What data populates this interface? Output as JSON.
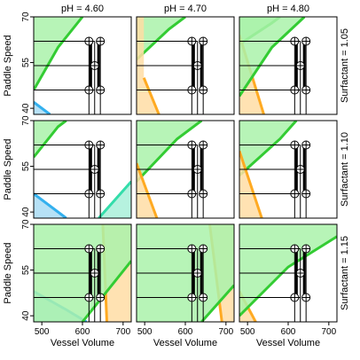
{
  "chart_data": {
    "type": "contour-grid",
    "xlabel": "Vessel Volume",
    "ylabel": "Paddle Speed",
    "xlim": [
      480,
      720
    ],
    "ylim": [
      38,
      70
    ],
    "x_ticks": [
      500,
      600,
      700
    ],
    "y_ticks": [
      40,
      55,
      70
    ],
    "column_labels": [
      "pH = 4.60",
      "pH = 4.70",
      "pH = 4.80"
    ],
    "row_labels": [
      "Surfactant = 1.05",
      "Surfactant = 1.10",
      "Surfactant = 1.15"
    ],
    "colors": {
      "green": "#33cc33",
      "green_fill": "#aaf2aa",
      "orange": "#ffaa22",
      "orange_fill": "#ffdda5",
      "blue": "#33b0ee",
      "blue_fill": "#a9dcf5",
      "teal": "#33ddaa",
      "teal_fill": "#a9f0d9"
    },
    "design_points": {
      "x": [
        616,
        630,
        644
      ],
      "y": [
        46,
        54,
        62
      ],
      "x_center": 630,
      "y_center": 54
    },
    "panels": [
      {
        "row": 0,
        "col": 0,
        "regions": [
          {
            "color": "green",
            "side": "above",
            "line": [
              [
                480,
                46
              ],
              [
                540,
                60
              ],
              [
                600,
                70
              ]
            ]
          },
          {
            "color": "blue",
            "side": "below",
            "line": [
              [
                480,
                42
              ],
              [
                520,
                38
              ]
            ]
          }
        ]
      },
      {
        "row": 0,
        "col": 1,
        "regions": [
          {
            "color": "green",
            "side": "above",
            "line": [
              [
                480,
                56
              ],
              [
                560,
                66
              ],
              [
                600,
                70
              ]
            ]
          },
          {
            "color": "orange",
            "side": "left",
            "line": [
              [
                498,
                50
              ],
              [
                535,
                38
              ]
            ]
          }
        ]
      },
      {
        "row": 0,
        "col": 2,
        "regions": [
          {
            "color": "green",
            "side": "above",
            "line": [
              [
                480,
                61
              ],
              [
                560,
                68
              ],
              [
                580,
                70
              ]
            ]
          },
          {
            "color": "orange",
            "side": "left",
            "line": [
              [
                480,
                64
              ],
              [
                540,
                38
              ]
            ]
          },
          {
            "color": "green",
            "side": "above",
            "line": [
              [
                480,
                44
              ],
              [
                560,
                60
              ],
              [
                640,
                70
              ]
            ]
          }
        ]
      },
      {
        "row": 1,
        "col": 0,
        "regions": [
          {
            "color": "green",
            "side": "above",
            "line": [
              [
                480,
                58
              ],
              [
                540,
                68
              ],
              [
                560,
                70
              ]
            ]
          },
          {
            "color": "blue",
            "side": "below",
            "line": [
              [
                480,
                46
              ],
              [
                560,
                38
              ]
            ]
          },
          {
            "color": "teal",
            "side": "below",
            "line": [
              [
                640,
                38
              ],
              [
                720,
                50
              ]
            ]
          }
        ]
      },
      {
        "row": 1,
        "col": 1,
        "regions": [
          {
            "color": "green",
            "side": "above",
            "line": [
              [
                480,
                50
              ],
              [
                580,
                64
              ],
              [
                640,
                70
              ]
            ]
          },
          {
            "color": "orange",
            "side": "left",
            "line": [
              [
                480,
                56
              ],
              [
                530,
                38
              ]
            ]
          }
        ]
      },
      {
        "row": 1,
        "col": 2,
        "regions": [
          {
            "color": "green",
            "side": "above",
            "line": [
              [
                480,
                52
              ],
              [
                580,
                64
              ],
              [
                620,
                70
              ]
            ]
          },
          {
            "color": "orange",
            "side": "left",
            "line": [
              [
                480,
                60
              ],
              [
                535,
                38
              ]
            ]
          }
        ]
      },
      {
        "row": 2,
        "col": 0,
        "regions": [
          {
            "color": "blue",
            "side": "below",
            "line": [
              [
                480,
                48
              ],
              [
                560,
                42
              ],
              [
                610,
                38
              ]
            ]
          },
          {
            "color": "orange",
            "side": "right",
            "line": [
              [
                650,
                70
              ],
              [
                660,
                38
              ]
            ]
          },
          {
            "color": "green",
            "side": "above",
            "line": [
              [
                600,
                38
              ],
              [
                720,
                58
              ]
            ]
          }
        ]
      },
      {
        "row": 2,
        "col": 1,
        "regions": [
          {
            "color": "orange",
            "side": "right",
            "line": [
              [
                660,
                70
              ],
              [
                690,
                38
              ]
            ]
          },
          {
            "color": "green",
            "side": "above",
            "line": [
              [
                640,
                38
              ],
              [
                720,
                50
              ]
            ]
          }
        ]
      },
      {
        "row": 2,
        "col": 2,
        "regions": [
          {
            "color": "orange",
            "side": "left",
            "line": [
              [
                480,
                48
              ],
              [
                520,
                38
              ]
            ]
          },
          {
            "color": "green",
            "side": "above",
            "line": [
              [
                480,
                40
              ],
              [
                600,
                56
              ],
              [
                720,
                66
              ]
            ]
          }
        ]
      }
    ]
  }
}
